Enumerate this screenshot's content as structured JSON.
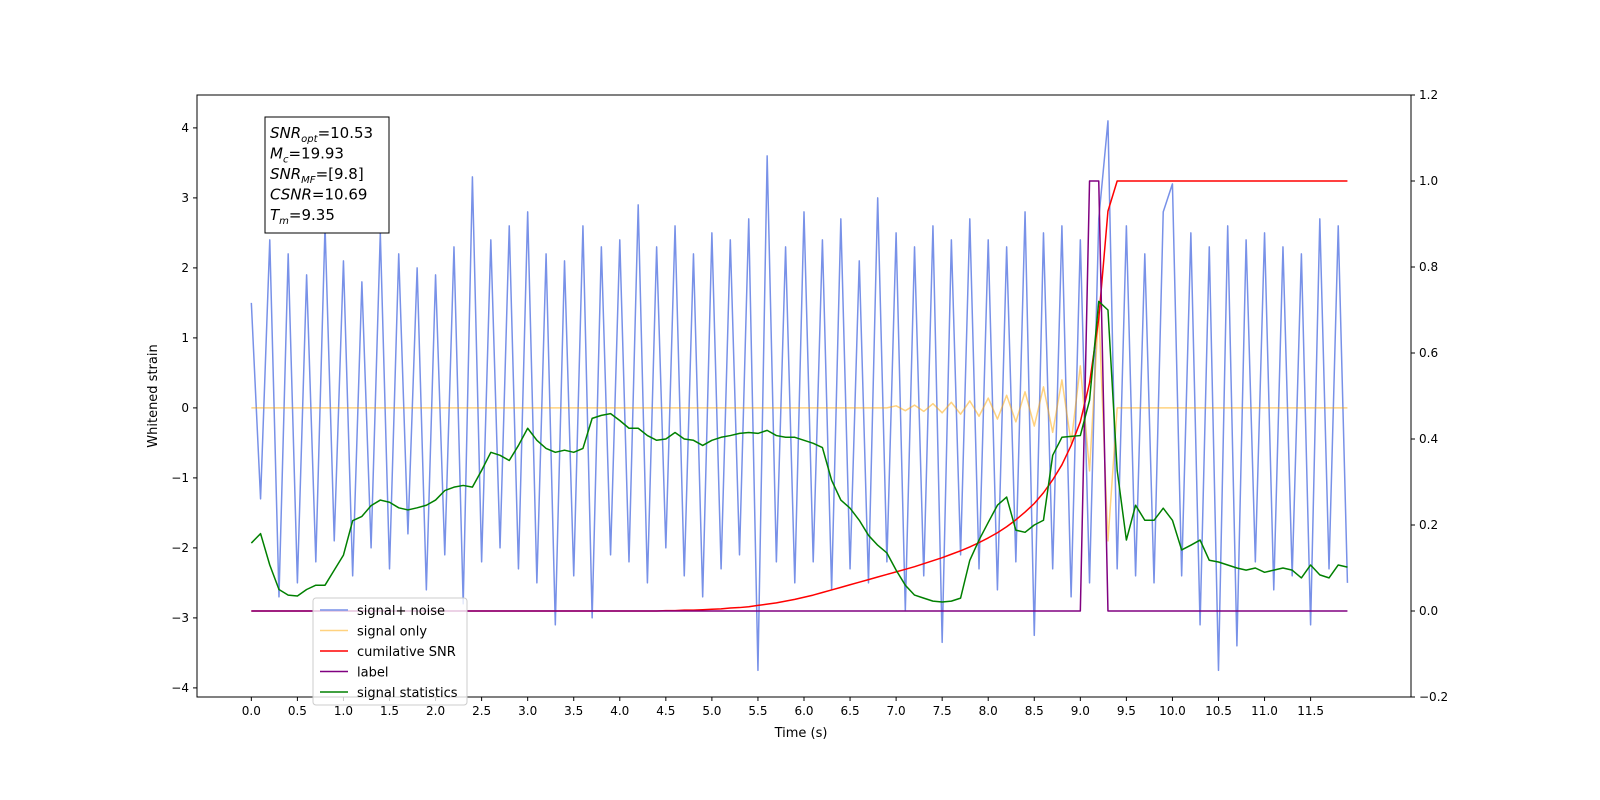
{
  "chart_data": {
    "type": "line",
    "xlabel": "Time (s)",
    "ylabel": "Whitened strain",
    "xlim": [
      -0.59,
      12.59
    ],
    "ylim": [
      -4.13,
      4.47
    ],
    "y2lim": [
      -0.2,
      1.2
    ],
    "xticks": [
      {
        "value": 0,
        "label": "0.0"
      },
      0.5,
      {
        "value": 1,
        "label": "1.0"
      },
      1.5,
      {
        "value": 2,
        "label": "2.0"
      },
      2.5,
      {
        "value": 3,
        "label": "3.0"
      },
      3.5,
      {
        "value": 4,
        "label": "4.0"
      },
      4.5,
      {
        "value": 5,
        "label": "5.0"
      },
      5.5,
      {
        "value": 6,
        "label": "6.0"
      },
      6.5,
      {
        "value": 7,
        "label": "7.0"
      },
      7.5,
      {
        "value": 8,
        "label": "8.0"
      },
      8.5,
      {
        "value": 9,
        "label": "9.0"
      },
      9.5,
      {
        "value": 10,
        "label": "10.0"
      },
      10.5,
      {
        "value": 11,
        "label": "11.0"
      },
      11.5
    ],
    "yticks": [
      {
        "value": -4,
        "label": "−4"
      },
      {
        "value": -3,
        "label": "−3"
      },
      {
        "value": -2,
        "label": "−2"
      },
      {
        "value": -1,
        "label": "−1"
      },
      0,
      1,
      2,
      3,
      4
    ],
    "y2ticks": [
      {
        "value": -0.2,
        "label": "−0.2"
      },
      {
        "value": 0,
        "label": "0.0"
      },
      0.2,
      0.4,
      0.6,
      0.8,
      {
        "value": 1,
        "label": "1.0"
      },
      1.2
    ],
    "legend": "lower left",
    "annotation": [
      {
        "base": "SNR",
        "sub": "opt",
        "text": "=10.53"
      },
      {
        "base": "M",
        "sub": "c",
        "text": "=19.93"
      },
      {
        "base": "SNR",
        "sub": "MF",
        "text": "=[9.8]"
      },
      {
        "base": "CSNR",
        "sub": null,
        "text": "=10.69"
      },
      {
        "base": "T",
        "sub": "m",
        "text": "=9.35"
      }
    ],
    "x": [
      0,
      0.1,
      0.2,
      0.3,
      0.4,
      0.5,
      0.6,
      0.7,
      0.8,
      0.9,
      1,
      1.1,
      1.2,
      1.3,
      1.4,
      1.5,
      1.6,
      1.7,
      1.8,
      1.9,
      2,
      2.1,
      2.2,
      2.3,
      2.4,
      2.5,
      2.6,
      2.7,
      2.8,
      2.9,
      3,
      3.1,
      3.2,
      3.3,
      3.4,
      3.5,
      3.6,
      3.7,
      3.8,
      3.9,
      4,
      4.1,
      4.2,
      4.3,
      4.4,
      4.5,
      4.6,
      4.7,
      4.8,
      4.9,
      5,
      5.1,
      5.2,
      5.3,
      5.4,
      5.5,
      5.6,
      5.7,
      5.8,
      5.9,
      6,
      6.1,
      6.2,
      6.3,
      6.4,
      6.5,
      6.6,
      6.7,
      6.8,
      6.9,
      7,
      7.1,
      7.2,
      7.3,
      7.4,
      7.5,
      7.6,
      7.7,
      7.8,
      7.9,
      8,
      8.1,
      8.2,
      8.3,
      8.4,
      8.5,
      8.6,
      8.7,
      8.8,
      8.9,
      9,
      9.1,
      9.2,
      9.3,
      9.4,
      9.5,
      9.6,
      9.7,
      9.8,
      9.9,
      10,
      10.1,
      10.2,
      10.3,
      10.4,
      10.5,
      10.6,
      10.7,
      10.8,
      10.9,
      11,
      11.1,
      11.2,
      11.3,
      11.4,
      11.5,
      11.6,
      11.7,
      11.8,
      11.9
    ],
    "series": [
      {
        "name": "signal+ noise",
        "color": "#7891e8",
        "axis": "y",
        "values": [
          1.5,
          -1.3,
          2.4,
          -2.7,
          2.2,
          -2.5,
          1.9,
          -2.2,
          2.6,
          -1.9,
          2.1,
          -2.4,
          1.8,
          -2.0,
          2.5,
          -2.3,
          2.2,
          -1.8,
          2.0,
          -2.6,
          1.9,
          -2.1,
          2.3,
          -2.8,
          3.3,
          -2.2,
          2.4,
          -2.0,
          2.6,
          -2.3,
          2.8,
          -2.5,
          2.2,
          -3.1,
          2.1,
          -2.4,
          2.6,
          -3.0,
          2.3,
          -2.1,
          2.4,
          -2.2,
          2.9,
          -2.5,
          2.3,
          -2.0,
          2.6,
          -2.4,
          2.2,
          -2.7,
          2.5,
          -2.3,
          2.4,
          -2.1,
          2.7,
          -3.75,
          3.6,
          -2.2,
          2.3,
          -2.5,
          2.8,
          -2.2,
          2.4,
          -2.6,
          2.7,
          -2.3,
          2.1,
          -2.5,
          3.0,
          -2.2,
          2.5,
          -2.9,
          2.3,
          -2.4,
          2.6,
          -3.35,
          2.4,
          -2.1,
          2.7,
          -2.3,
          2.4,
          -2.6,
          2.3,
          -2.2,
          2.8,
          -3.25,
          2.5,
          -2.3,
          2.6,
          -2.7,
          2.4,
          -2.5,
          2.7,
          4.1,
          -2.3,
          2.6,
          -2.4,
          2.2,
          -2.5,
          2.8,
          3.2,
          -2.4,
          2.5,
          -3.1,
          2.3,
          -3.75,
          2.6,
          -3.4,
          2.4,
          -2.2,
          2.5,
          -2.6,
          2.3,
          -2.4,
          2.2,
          -3.1,
          2.7,
          -2.3,
          2.6,
          -2.5
        ]
      },
      {
        "name": "signal only",
        "color": "#ffa500",
        "alpha": 0.5,
        "axis": "y",
        "values": [
          0,
          0,
          0,
          0,
          0,
          0,
          0,
          0,
          0,
          0,
          0,
          0,
          0,
          0,
          0,
          0,
          0,
          0,
          0,
          0,
          0,
          0,
          0,
          0,
          0,
          0,
          0,
          0,
          0,
          0,
          0,
          0,
          0,
          0,
          0,
          0,
          0,
          0,
          0,
          0,
          0,
          0,
          0,
          0,
          0,
          0,
          0,
          0,
          0,
          0,
          0,
          0,
          0,
          0,
          0,
          0,
          0,
          0,
          0,
          0,
          0,
          0,
          0,
          0,
          0,
          0,
          0,
          0,
          0,
          0,
          0.03,
          -0.04,
          0.04,
          -0.05,
          0.06,
          -0.07,
          0.08,
          -0.09,
          0.1,
          -0.12,
          0.14,
          -0.16,
          0.18,
          -0.2,
          0.23,
          -0.26,
          0.3,
          -0.35,
          0.4,
          -0.5,
          0.6,
          -0.9,
          1.4,
          -1.9,
          0,
          0,
          0,
          0,
          0,
          0,
          0,
          0,
          0,
          0,
          0,
          0,
          0,
          0,
          0,
          0,
          0,
          0,
          0,
          0,
          0,
          0,
          0,
          0,
          0,
          0
        ]
      },
      {
        "name": "cumilative SNR",
        "color": "#ff0000",
        "axis": "y2",
        "values": [
          0,
          0,
          0,
          0,
          0,
          0,
          0,
          0,
          0,
          0,
          0,
          0,
          0,
          0,
          0,
          0,
          0,
          0,
          0,
          0,
          0,
          0,
          0,
          0,
          0,
          0,
          0,
          0,
          0,
          0,
          0,
          0,
          0,
          0,
          0,
          0,
          0,
          0,
          0,
          0,
          0,
          0,
          0,
          0,
          0,
          0.001,
          0.001,
          0.002,
          0.002,
          0.003,
          0.004,
          0.005,
          0.007,
          0.008,
          0.01,
          0.013,
          0.016,
          0.019,
          0.023,
          0.027,
          0.032,
          0.037,
          0.043,
          0.049,
          0.055,
          0.061,
          0.067,
          0.073,
          0.079,
          0.085,
          0.091,
          0.097,
          0.103,
          0.11,
          0.117,
          0.124,
          0.132,
          0.14,
          0.149,
          0.159,
          0.17,
          0.182,
          0.196,
          0.212,
          0.23,
          0.25,
          0.275,
          0.305,
          0.34,
          0.385,
          0.44,
          0.53,
          0.68,
          0.93,
          1,
          1,
          1,
          1,
          1,
          1,
          1,
          1,
          1,
          1,
          1,
          1,
          1,
          1,
          1,
          1,
          1,
          1,
          1,
          1,
          1,
          1,
          1,
          1,
          1,
          1
        ]
      },
      {
        "name": "label",
        "color": "#800080",
        "axis": "y2",
        "values": [
          0,
          0,
          0,
          0,
          0,
          0,
          0,
          0,
          0,
          0,
          0,
          0,
          0,
          0,
          0,
          0,
          0,
          0,
          0,
          0,
          0,
          0,
          0,
          0,
          0,
          0,
          0,
          0,
          0,
          0,
          0,
          0,
          0,
          0,
          0,
          0,
          0,
          0,
          0,
          0,
          0,
          0,
          0,
          0,
          0,
          0,
          0,
          0,
          0,
          0,
          0,
          0,
          0,
          0,
          0,
          0,
          0,
          0,
          0,
          0,
          0,
          0,
          0,
          0,
          0,
          0,
          0,
          0,
          0,
          0,
          0,
          0,
          0,
          0,
          0,
          0,
          0,
          0,
          0,
          0,
          0,
          0,
          0,
          0,
          0,
          0,
          0,
          0,
          0,
          0,
          0,
          1,
          1,
          0,
          0,
          0,
          0,
          0,
          0,
          0,
          0,
          0,
          0,
          0,
          0,
          0,
          0,
          0,
          0,
          0,
          0,
          0,
          0,
          0,
          0,
          0,
          0,
          0,
          0,
          0
        ]
      },
      {
        "name": "signal statistics",
        "color": "#008000",
        "axis": "y2",
        "values": [
          0.158,
          0.18,
          0.107,
          0.05,
          0.037,
          0.035,
          0.05,
          0.06,
          0.06,
          0.095,
          0.13,
          0.21,
          0.22,
          0.245,
          0.258,
          0.253,
          0.24,
          0.235,
          0.24,
          0.246,
          0.258,
          0.28,
          0.288,
          0.292,
          0.288,
          0.327,
          0.369,
          0.362,
          0.35,
          0.385,
          0.425,
          0.397,
          0.378,
          0.369,
          0.374,
          0.369,
          0.378,
          0.448,
          0.455,
          0.459,
          0.443,
          0.425,
          0.425,
          0.408,
          0.397,
          0.4,
          0.415,
          0.4,
          0.397,
          0.385,
          0.397,
          0.404,
          0.408,
          0.413,
          0.415,
          0.413,
          0.42,
          0.408,
          0.404,
          0.404,
          0.397,
          0.39,
          0.38,
          0.304,
          0.258,
          0.239,
          0.211,
          0.176,
          0.153,
          0.135,
          0.095,
          0.06,
          0.037,
          0.03,
          0.023,
          0.021,
          0.023,
          0.03,
          0.118,
          0.165,
          0.206,
          0.246,
          0.265,
          0.188,
          0.183,
          0.2,
          0.211,
          0.362,
          0.404,
          0.406,
          0.408,
          0.49,
          0.72,
          0.7,
          0.327,
          0.165,
          0.246,
          0.211,
          0.211,
          0.239,
          0.211,
          0.142,
          0.153,
          0.165,
          0.118,
          0.114,
          0.107,
          0.1,
          0.095,
          0.1,
          0.09,
          0.095,
          0.1,
          0.095,
          0.077,
          0.107,
          0.084,
          0.077,
          0.107,
          0.102
        ]
      }
    ]
  }
}
